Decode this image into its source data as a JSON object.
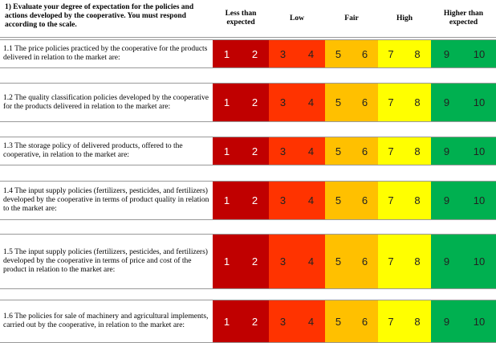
{
  "header": {
    "title": "1)  Evaluate your degree of expectation for the policies and actions developed by the cooperative. You must respond according to the scale."
  },
  "scale": {
    "levels": [
      {
        "label": "Less than expected",
        "values": [
          1,
          2
        ]
      },
      {
        "label": "Low",
        "values": [
          3,
          4
        ]
      },
      {
        "label": "Fair",
        "values": [
          5,
          6
        ]
      },
      {
        "label": "High",
        "values": [
          7,
          8
        ]
      },
      {
        "label": "Higher than expected",
        "values": [
          9,
          10
        ]
      }
    ]
  },
  "questions": [
    "1.1  The price policies practiced by the cooperative for the products delivered in relation to the market are:",
    "1.2  The quality classification policies developed by the cooperative for the products delivered in relation to the market are:",
    "1.3  The storage policy of delivered products, offered to the cooperative, in relation to the market are:",
    "1.4 The input supply policies (fertilizers, pesticides, and fertilizers) developed by the cooperative in terms of product quality in relation to the market are:",
    "1.5  The input supply policies (fertilizers, pesticides, and fertilizers) developed by the cooperative in terms of price and cost of the product in relation to the market are:",
    "1.6  The policies for sale of machinery and agricultural implements, carried out by the cooperative, in relation to the market are:"
  ]
}
